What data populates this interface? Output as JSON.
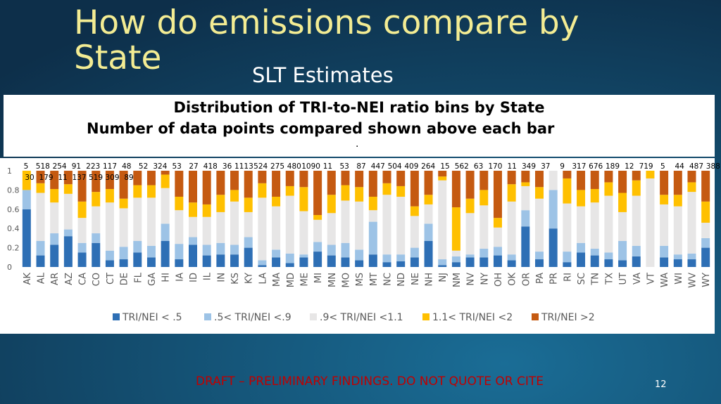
{
  "slide": {
    "title": "How do emissions compare by State",
    "subtitle": "SLT Estimates",
    "box_title": "Distribution of TRI-to-NEI ratio bins by State",
    "box_subtitle": "Number of data points compared shown above each bar",
    "box_dot": ".",
    "draft": "DRAFT – PRELIMINARY FINDINGS.  DO NOT QUOTE OR CITE",
    "page_number": "12"
  },
  "chart_data": {
    "type": "stacked_bar",
    "categories": [
      "AK",
      "AL",
      "AR",
      "AZ",
      "CA",
      "CO",
      "CT",
      "DE",
      "FL",
      "GA",
      "HI",
      "IA",
      "ID",
      "IL",
      "IN",
      "KS",
      "KY",
      "LA",
      "MA",
      "MD",
      "ME",
      "MI",
      "MN",
      "MO",
      "MS",
      "MT",
      "NC",
      "ND",
      "NE",
      "NH",
      "NJ",
      "NM",
      "NV",
      "NY",
      "OH",
      "OK",
      "OR",
      "PA",
      "PR",
      "RI",
      "SC",
      "TN",
      "TX",
      "UT",
      "VA",
      "VT",
      "WA",
      "WI",
      "WV",
      "WY"
    ],
    "count_labels_row1": [
      5,
      518,
      254,
      91,
      223,
      117,
      48,
      52,
      324,
      53,
      27,
      418,
      36,
      1113,
      524,
      275,
      480,
      1090,
      11,
      53,
      87,
      447,
      504,
      409,
      264,
      15,
      562,
      63,
      170,
      11,
      349,
      37,
      9,
      317,
      676,
      189,
      12,
      719,
      5,
      44,
      487,
      388
    ],
    "count_labels_row2": [
      30,
      179,
      11,
      137,
      519,
      309,
      89
    ],
    "series": [
      {
        "name": "TRI/NEI < .5",
        "color": "#2e6fb5",
        "values": [
          0.6,
          0.12,
          0.23,
          0.32,
          0.15,
          0.25,
          0.07,
          0.08,
          0.15,
          0.1,
          0.27,
          0.08,
          0.23,
          0.12,
          0.13,
          0.13,
          0.2,
          0.02,
          0.1,
          0.04,
          0.1,
          0.16,
          0.12,
          0.1,
          0.07,
          0.13,
          0.05,
          0.06,
          0.1,
          0.27,
          0.02,
          0.05,
          0.1,
          0.1,
          0.12,
          0.07,
          0.42,
          0.08,
          0.4,
          0.05,
          0.15,
          0.12,
          0.08,
          0.07,
          0.11,
          0,
          0.1,
          0.08,
          0.08,
          0.2
        ]
      },
      {
        "name": ".5< TRI/NEI <.9",
        "color": "#9dc3e6",
        "values": [
          0.2,
          0.15,
          0.12,
          0.07,
          0.1,
          0.1,
          0.1,
          0.13,
          0.12,
          0.12,
          0.18,
          0.16,
          0.08,
          0.11,
          0.12,
          0.1,
          0.11,
          0.05,
          0.08,
          0.1,
          0.03,
          0.1,
          0.11,
          0.15,
          0.11,
          0.34,
          0.08,
          0.07,
          0.1,
          0.18,
          0.06,
          0.06,
          0.03,
          0.09,
          0.09,
          0.06,
          0.17,
          0.08,
          0.4,
          0.11,
          0.1,
          0.07,
          0.07,
          0.2,
          0.11,
          0,
          0.12,
          0.05,
          0.06,
          0.1
        ]
      },
      {
        "name": ".9< TRI/NEI <1.1",
        "color": "#e7e6e6",
        "values": [
          0,
          0.5,
          0.32,
          0.37,
          0.26,
          0.28,
          0.5,
          0.4,
          0.45,
          0.5,
          0.37,
          0.35,
          0.21,
          0.29,
          0.32,
          0.45,
          0.26,
          0.65,
          0.45,
          0.6,
          0.45,
          0.23,
          0.33,
          0.44,
          0.5,
          0.12,
          0.62,
          0.6,
          0.33,
          0.2,
          0.82,
          0.06,
          0.43,
          0.45,
          0.2,
          0.55,
          0.25,
          0.55,
          0.2,
          0.5,
          0.38,
          0.48,
          0.59,
          0.3,
          0.52,
          0.92,
          0.43,
          0.5,
          0.64,
          0.16
        ]
      },
      {
        "name": "1.1< TRI/NEI <2",
        "color": "#ffc000",
        "values": [
          0.2,
          0.1,
          0.14,
          0.1,
          0.17,
          0.15,
          0.14,
          0.1,
          0.13,
          0.13,
          0.14,
          0.14,
          0.15,
          0.13,
          0.18,
          0.12,
          0.15,
          0.15,
          0.1,
          0.1,
          0.25,
          0.05,
          0.19,
          0.16,
          0.15,
          0.14,
          0.12,
          0.11,
          0.1,
          0.1,
          0.04,
          0.45,
          0.15,
          0.16,
          0.1,
          0.18,
          0.04,
          0.12,
          0,
          0.26,
          0.17,
          0.14,
          0.14,
          0.2,
          0.16,
          0.08,
          0.1,
          0.12,
          0.1,
          0.22
        ]
      },
      {
        "name": "TRI/NEI >2",
        "color": "#c55a11",
        "values": [
          0,
          0.13,
          0.19,
          0.14,
          0.32,
          0.22,
          0.19,
          0.29,
          0.15,
          0.15,
          0.04,
          0.27,
          0.33,
          0.35,
          0.25,
          0.2,
          0.28,
          0.13,
          0.27,
          0.16,
          0.17,
          0.46,
          0.25,
          0.15,
          0.17,
          0.27,
          0.13,
          0.16,
          0.37,
          0.25,
          0.06,
          0.38,
          0.29,
          0.2,
          0.49,
          0.14,
          0.12,
          0.17,
          0,
          0.08,
          0.2,
          0.19,
          0.12,
          0.23,
          0.1,
          0,
          0.25,
          0.25,
          0.12,
          0.32
        ]
      }
    ],
    "ylim": [
      0,
      1
    ],
    "yticks": [
      0,
      0.2,
      0.4,
      0.6,
      0.8,
      1
    ],
    "legend": "bottom"
  }
}
